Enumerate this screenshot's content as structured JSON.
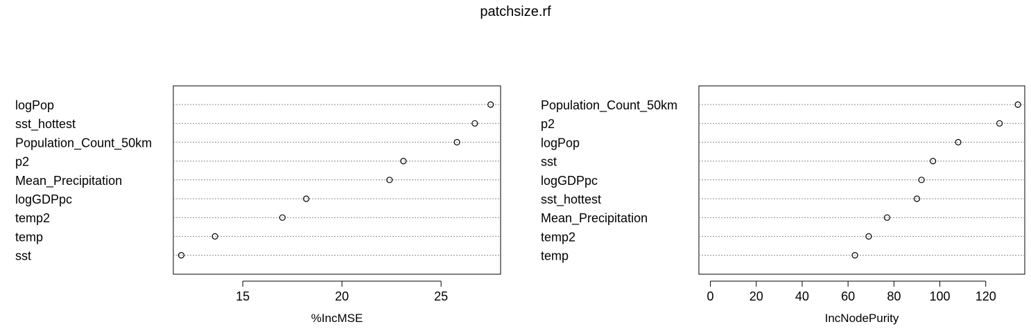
{
  "title": "patchsize.rf",
  "chart_data": [
    {
      "type": "scatter",
      "subtype": "dotchart",
      "xlabel": "%IncMSE",
      "ylabel": "",
      "xlim": [
        11.5,
        28.0
      ],
      "xticks": [
        15,
        20,
        25
      ],
      "grid": "dotted horizontal",
      "labels": [
        "logPop",
        "sst_hottest",
        "Population_Count_50km",
        "p2",
        "Mean_Precipitation",
        "logGDPpc",
        "temp2",
        "temp",
        "sst"
      ],
      "values": [
        27.5,
        26.7,
        25.8,
        23.1,
        22.4,
        18.2,
        17.0,
        13.6,
        11.9
      ]
    },
    {
      "type": "scatter",
      "subtype": "dotchart",
      "xlabel": "IncNodePurity",
      "ylabel": "",
      "xlim": [
        -5,
        137
      ],
      "xticks": [
        0,
        20,
        40,
        60,
        80,
        100,
        120
      ],
      "grid": "dotted horizontal",
      "labels": [
        "Population_Count_50km",
        "p2",
        "logPop",
        "sst",
        "logGDPpc",
        "sst_hottest",
        "Mean_Precipitation",
        "temp2",
        "temp"
      ],
      "values": [
        134,
        126,
        108,
        97,
        92,
        90,
        77,
        69,
        63
      ]
    }
  ]
}
